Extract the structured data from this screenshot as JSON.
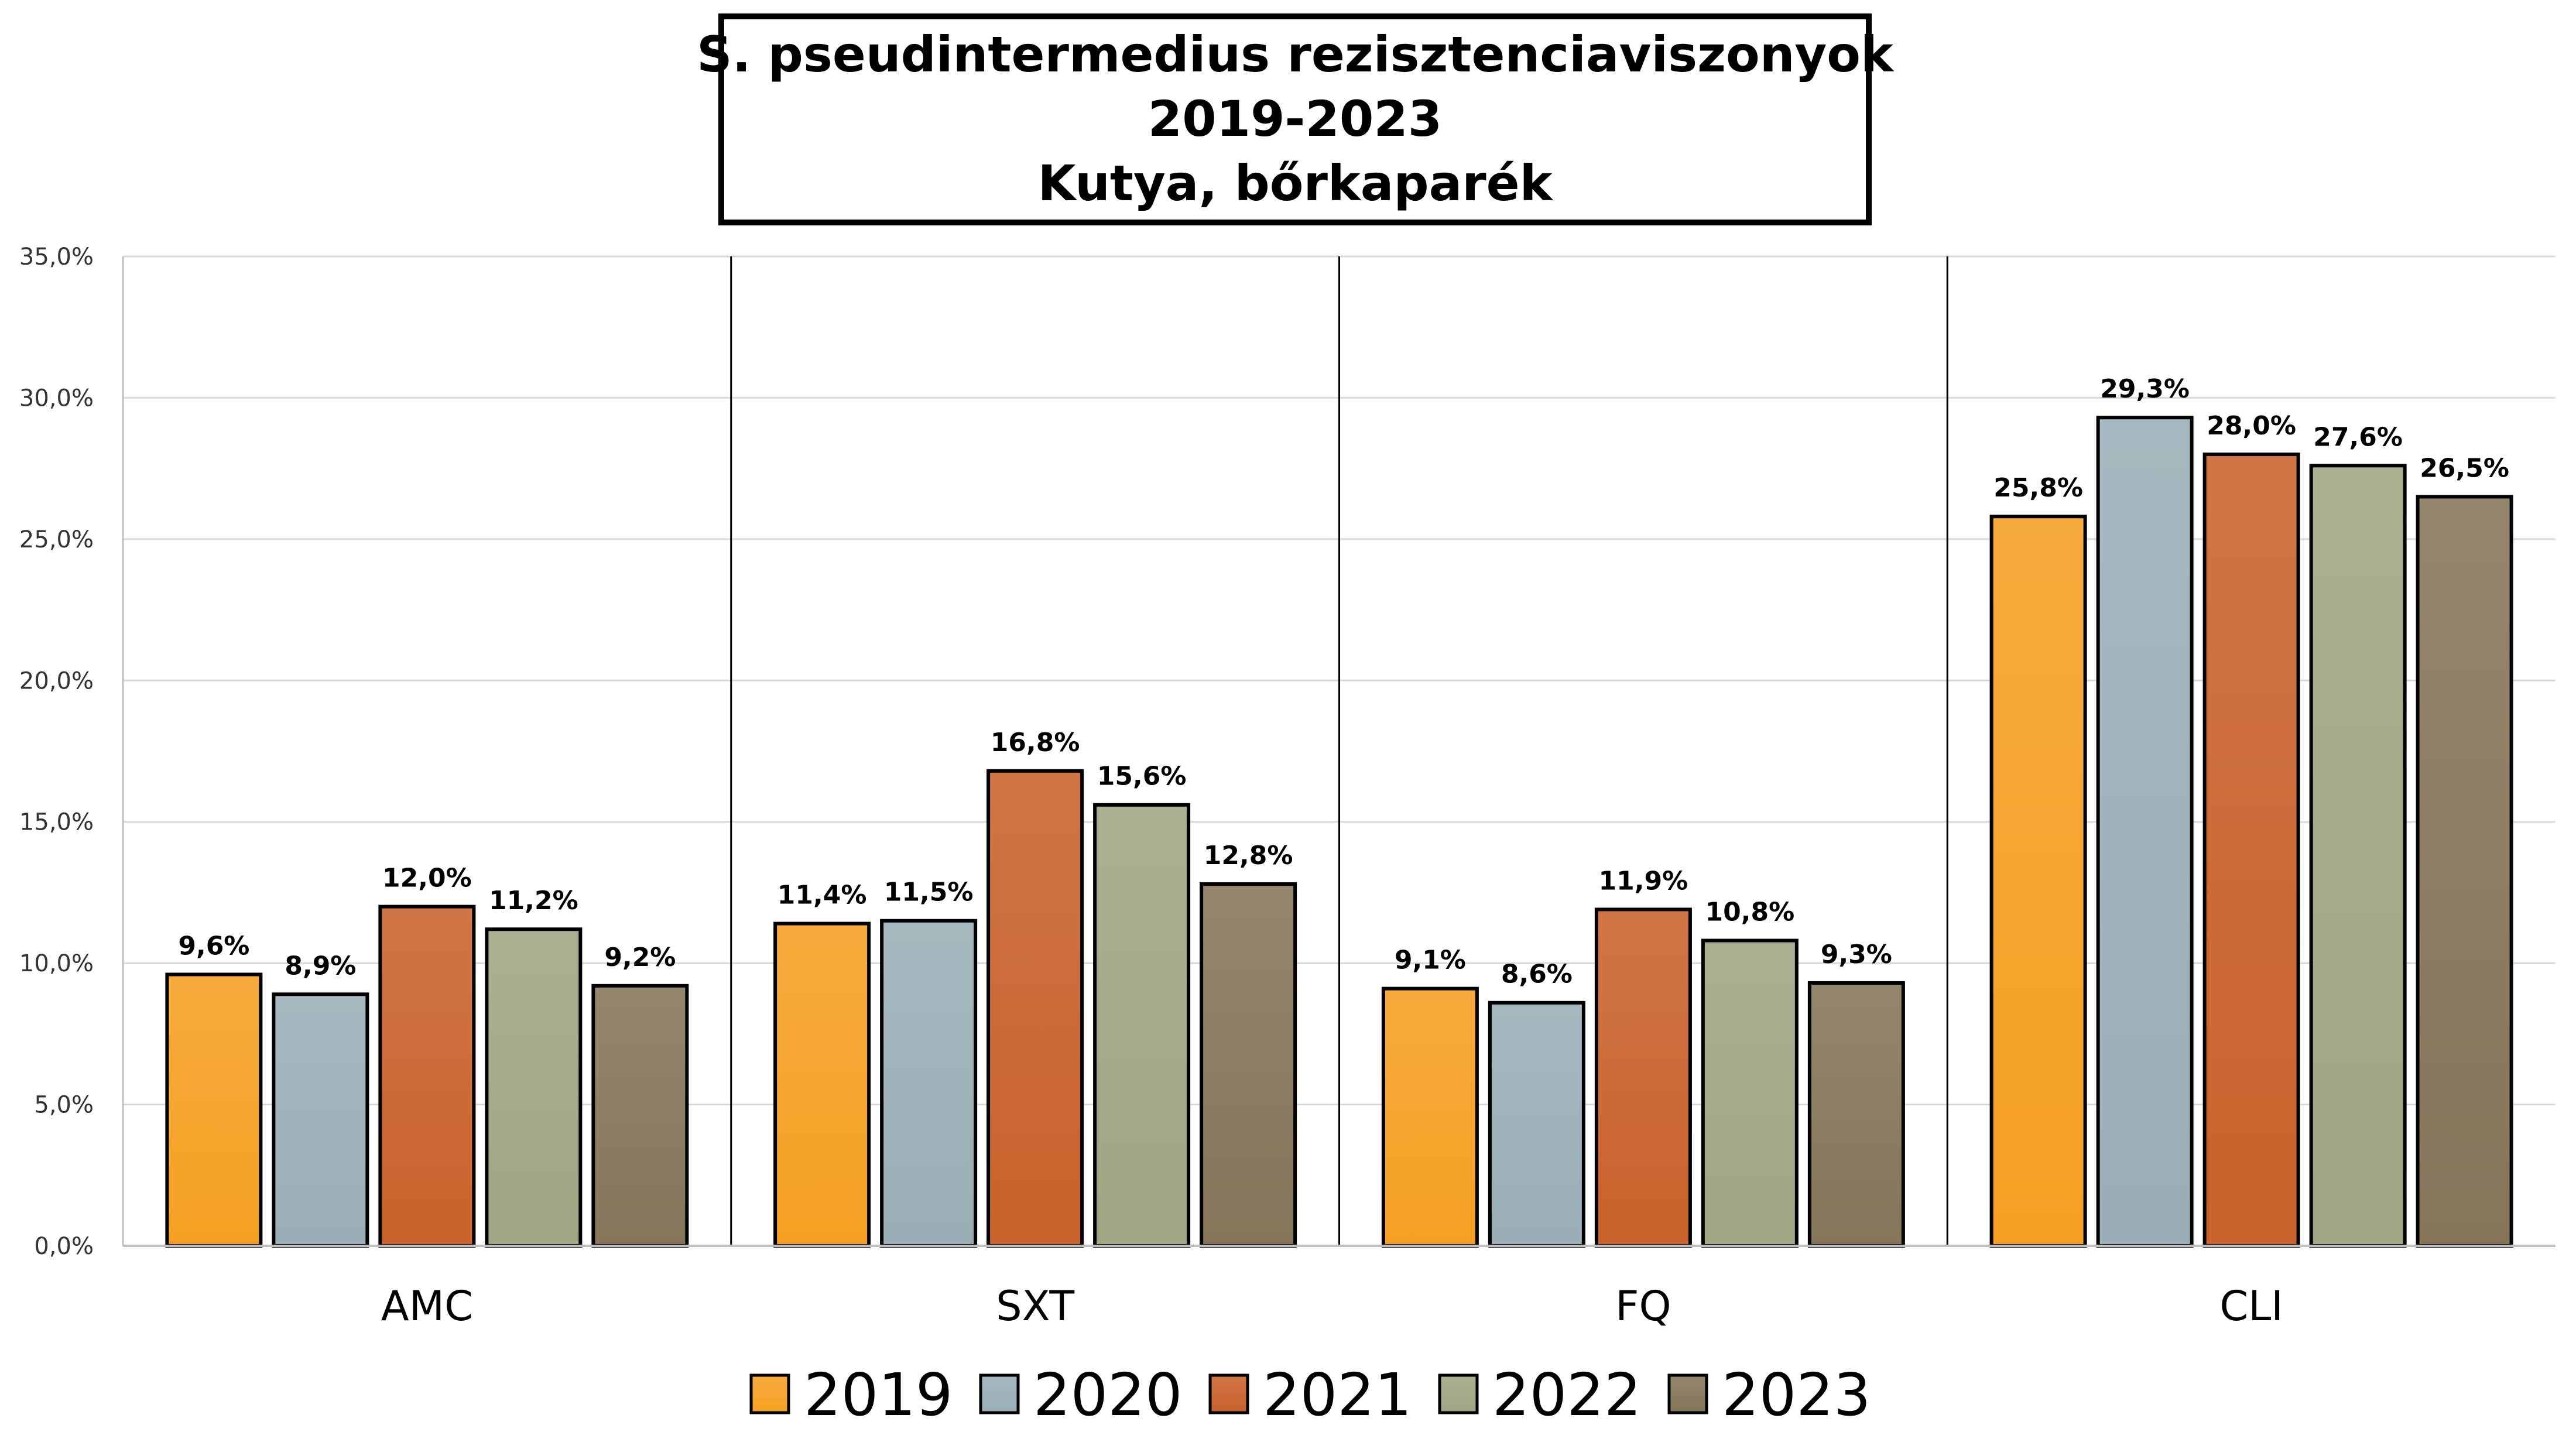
{
  "chart_data": {
    "type": "bar",
    "title_lines": [
      "S. pseudintermedius rezisztenciaviszonyok",
      "2019-2023",
      "Kutya, bőrkaparék"
    ],
    "categories": [
      "AMC",
      "SXT",
      "FQ",
      "CLI"
    ],
    "series": [
      {
        "name": "2019",
        "color": "#F5A022",
        "values": [
          9.6,
          11.4,
          9.1,
          25.8
        ]
      },
      {
        "name": "2020",
        "color": "#9AAEB6",
        "values": [
          8.9,
          11.5,
          8.6,
          29.3
        ]
      },
      {
        "name": "2021",
        "color": "#C9622C",
        "values": [
          12.0,
          16.8,
          11.9,
          28.0
        ]
      },
      {
        "name": "2022",
        "color": "#9EA684",
        "values": [
          11.2,
          15.6,
          10.8,
          27.6
        ]
      },
      {
        "name": "2023",
        "color": "#857559",
        "values": [
          9.2,
          12.8,
          9.3,
          26.5
        ]
      }
    ],
    "data_labels": [
      [
        "9,6%",
        "11,4%",
        "9,1%",
        "25,8%"
      ],
      [
        "8,9%",
        "11,5%",
        "8,6%",
        "29,3%"
      ],
      [
        "12,0%",
        "16,8%",
        "11,9%",
        "28,0%"
      ],
      [
        "11,2%",
        "15,6%",
        "10,8%",
        "27,6%"
      ],
      [
        "9,2%",
        "12,8%",
        "9,3%",
        "26,5%"
      ]
    ],
    "yticks": [
      "0,0%",
      "5,0%",
      "10,0%",
      "15,0%",
      "20,0%",
      "25,0%",
      "30,0%",
      "35,0%"
    ],
    "ytick_values": [
      0,
      5,
      10,
      15,
      20,
      25,
      30,
      35
    ],
    "ylim": [
      0,
      35
    ],
    "grid": true,
    "legend_position": "bottom"
  }
}
